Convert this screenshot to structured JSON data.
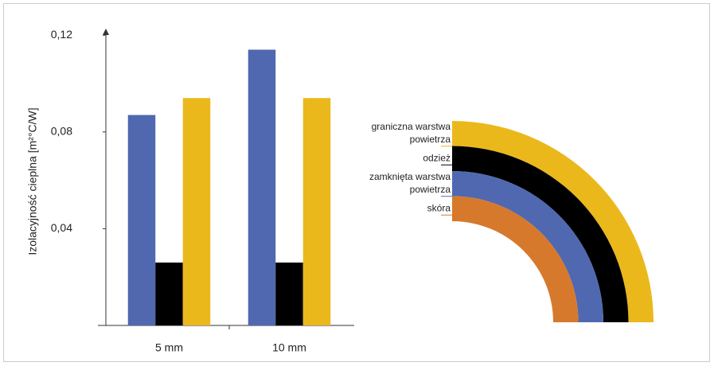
{
  "chart_data": {
    "type": "bar",
    "y_label": "Izolacyjność cieplna [m²°C/W]",
    "categories": [
      "5 mm",
      "10 mm"
    ],
    "series": [
      {
        "color": "#5068b0",
        "values": [
          0.087,
          0.114
        ]
      },
      {
        "color": "#000000",
        "values": [
          0.026,
          0.026
        ]
      },
      {
        "color": "#ebb81c",
        "values": [
          0.094,
          0.094
        ]
      }
    ],
    "ylim": [
      0,
      0.125
    ],
    "yticks": [
      {
        "value": 0.04,
        "label": "0,04"
      },
      {
        "value": 0.08,
        "label": "0,08"
      },
      {
        "value": 0.12,
        "label": "0,12"
      }
    ],
    "grid": false,
    "diagram": {
      "layers": [
        {
          "label": [
            "graniczna warstwa",
            "powietrza"
          ],
          "color": "#ebb81c"
        },
        {
          "label": [
            "odzież"
          ],
          "color": "#000000"
        },
        {
          "label": [
            "zamknięta warstwa",
            "powietrza"
          ],
          "color": "#5068b0"
        },
        {
          "label": [
            "skóra"
          ],
          "color": "#d6792c"
        }
      ]
    }
  }
}
